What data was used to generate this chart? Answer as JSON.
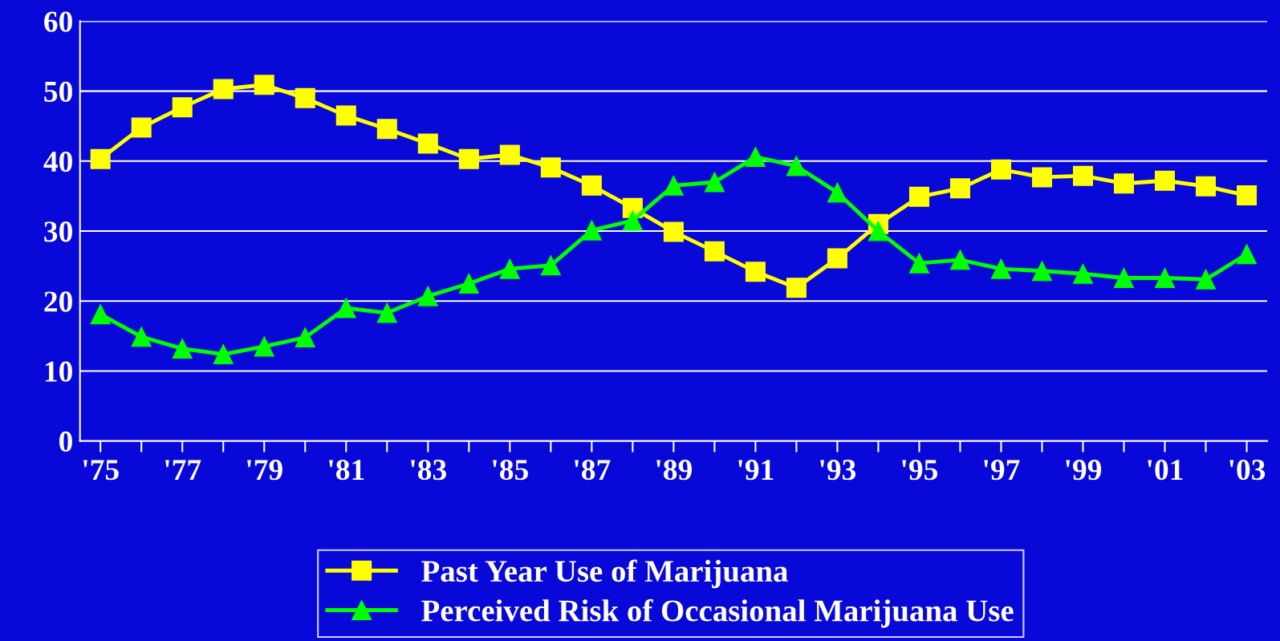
{
  "chart_data": {
    "type": "line",
    "categories": [
      "'75",
      null,
      "'77",
      null,
      "'79",
      null,
      "'81",
      null,
      "'83",
      null,
      "'85",
      null,
      "'87",
      null,
      "'89",
      null,
      "'91",
      null,
      "'93",
      null,
      "'95",
      null,
      "'97",
      null,
      "'99",
      null,
      "'01",
      null,
      "'03"
    ],
    "series": [
      {
        "name": "Past Year Use of Marijuana",
        "color": "#ffff00",
        "marker": "square",
        "values": [
          40.3,
          44.8,
          47.7,
          50.3,
          50.9,
          49.0,
          46.5,
          44.6,
          42.5,
          40.3,
          40.9,
          39.1,
          36.5,
          33.3,
          29.9,
          27.1,
          24.2,
          21.9,
          26.1,
          31.0,
          34.9,
          36.1,
          38.8,
          37.7,
          37.9,
          36.8,
          37.2,
          36.4,
          35.1
        ]
      },
      {
        "name": "Perceived Risk of Occasional Marijuana Use",
        "color": "#00ff00",
        "marker": "triangle",
        "values": [
          18.1,
          14.9,
          13.2,
          12.4,
          13.5,
          14.8,
          19.0,
          18.3,
          20.7,
          22.5,
          24.6,
          25.1,
          30.1,
          31.5,
          36.5,
          37.0,
          40.6,
          39.3,
          35.5,
          30.0,
          25.4,
          25.9,
          24.6,
          24.3,
          23.9,
          23.3,
          23.3,
          23.1,
          26.7
        ]
      }
    ],
    "ylim": [
      0,
      60
    ],
    "yticks": [
      0,
      10,
      20,
      30,
      40,
      50,
      60
    ],
    "grid": "y",
    "legend": "bottom",
    "line_style": "solid"
  }
}
